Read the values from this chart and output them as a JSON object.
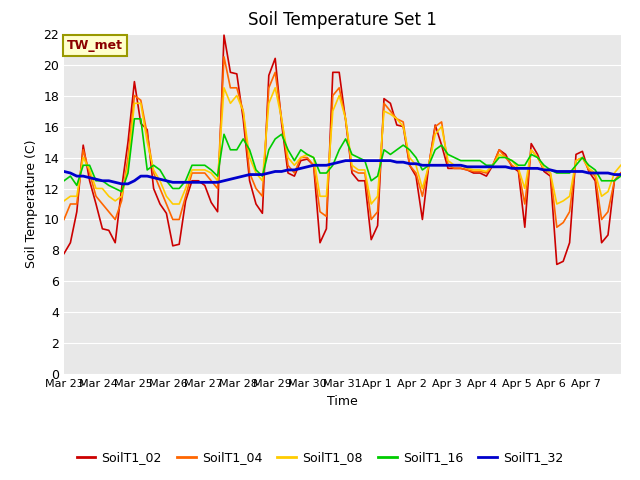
{
  "title": "Soil Temperature Set 1",
  "xlabel": "Time",
  "ylabel": "Soil Temperature (C)",
  "ylim": [
    0,
    22
  ],
  "yticks": [
    0,
    2,
    4,
    6,
    8,
    10,
    12,
    14,
    16,
    18,
    20,
    22
  ],
  "annotation": "TW_met",
  "series_labels": [
    "SoilT1_02",
    "SoilT1_04",
    "SoilT1_08",
    "SoilT1_16",
    "SoilT1_32"
  ],
  "series_colors": [
    "#cc0000",
    "#ff6600",
    "#ffcc00",
    "#00cc00",
    "#0000cc"
  ],
  "series_linewidths": [
    1.2,
    1.2,
    1.2,
    1.2,
    2.0
  ],
  "background_color": "#e8e8e8",
  "fig_background": "#ffffff",
  "title_fontsize": 12,
  "axis_fontsize": 9,
  "legend_fontsize": 9,
  "x_dates": [
    "Mar 23",
    "Mar 24",
    "Mar 25",
    "Mar 26",
    "Mar 27",
    "Mar 28",
    "Mar 29",
    "Mar 30",
    "Mar 31",
    "Apr 1",
    "Apr 2",
    "Apr 3",
    "Apr 4",
    "Apr 5",
    "Apr 6",
    "Apr 7"
  ],
  "SoilT1_02": [
    7.8,
    8.5,
    10.5,
    14.8,
    12.5,
    11.0,
    9.4,
    9.3,
    8.5,
    12.0,
    15.0,
    18.9,
    16.2,
    15.8,
    12.0,
    11.0,
    10.4,
    8.3,
    8.4,
    11.2,
    12.5,
    12.5,
    12.2,
    11.1,
    10.5,
    21.9,
    19.5,
    19.4,
    16.5,
    12.5,
    11.0,
    10.4,
    19.3,
    20.4,
    16.2,
    13.0,
    12.8,
    13.8,
    13.9,
    13.5,
    8.5,
    9.4,
    19.5,
    19.5,
    16.4,
    13.0,
    12.5,
    12.5,
    8.7,
    9.6,
    17.8,
    17.5,
    16.1,
    16.0,
    13.5,
    12.8,
    10.0,
    13.5,
    16.1,
    14.8,
    13.3,
    13.3,
    13.3,
    13.2,
    13.0,
    13.0,
    12.8,
    13.5,
    14.5,
    14.2,
    13.4,
    13.1,
    9.5,
    14.9,
    14.2,
    13.1,
    12.8,
    7.1,
    7.3,
    8.5,
    14.2,
    14.4,
    13.1,
    12.5,
    8.5,
    9.0,
    12.5,
    13.0
  ],
  "SoilT1_04": [
    10.0,
    11.0,
    11.0,
    14.5,
    13.0,
    11.5,
    11.0,
    10.5,
    10.0,
    11.2,
    14.0,
    18.0,
    17.7,
    15.5,
    13.0,
    12.0,
    11.0,
    10.0,
    10.0,
    11.5,
    13.0,
    13.0,
    13.0,
    12.5,
    12.0,
    20.5,
    18.5,
    18.5,
    17.0,
    13.0,
    12.0,
    11.5,
    18.5,
    19.5,
    16.5,
    13.5,
    13.0,
    14.0,
    14.0,
    13.5,
    10.5,
    10.2,
    18.0,
    18.5,
    16.5,
    13.2,
    13.0,
    13.0,
    10.0,
    10.5,
    17.5,
    17.0,
    16.5,
    16.3,
    13.5,
    13.0,
    11.5,
    13.5,
    16.0,
    16.3,
    13.5,
    13.3,
    13.3,
    13.2,
    13.1,
    13.1,
    13.0,
    13.5,
    14.5,
    14.0,
    13.5,
    13.2,
    11.0,
    14.5,
    14.0,
    13.2,
    13.0,
    9.5,
    9.8,
    10.5,
    13.8,
    14.0,
    13.2,
    12.8,
    10.0,
    10.5,
    12.5,
    13.0
  ],
  "SoilT1_08": [
    11.2,
    11.5,
    11.5,
    14.0,
    13.2,
    12.0,
    12.0,
    11.5,
    11.2,
    11.5,
    13.5,
    17.5,
    17.5,
    15.0,
    13.2,
    12.5,
    11.5,
    11.0,
    11.0,
    12.0,
    13.2,
    13.2,
    13.2,
    13.0,
    12.5,
    18.5,
    17.5,
    18.0,
    17.0,
    14.0,
    13.0,
    12.5,
    17.5,
    18.5,
    16.5,
    14.0,
    13.5,
    14.0,
    14.2,
    14.0,
    11.5,
    11.5,
    17.0,
    18.0,
    16.5,
    13.5,
    13.2,
    13.2,
    11.0,
    11.5,
    17.0,
    16.8,
    16.5,
    16.0,
    14.0,
    13.5,
    12.0,
    13.5,
    15.5,
    16.0,
    13.8,
    13.5,
    13.5,
    13.3,
    13.2,
    13.2,
    13.1,
    13.5,
    14.2,
    14.0,
    13.8,
    13.3,
    12.0,
    14.5,
    14.0,
    13.3,
    13.0,
    11.0,
    11.2,
    11.5,
    13.8,
    14.0,
    13.3,
    13.0,
    11.5,
    11.8,
    13.0,
    13.5
  ],
  "SoilT1_16": [
    12.5,
    12.8,
    12.2,
    13.5,
    13.5,
    12.5,
    12.5,
    12.2,
    12.0,
    11.8,
    13.0,
    16.5,
    16.5,
    13.2,
    13.5,
    13.2,
    12.5,
    12.0,
    12.0,
    12.5,
    13.5,
    13.5,
    13.5,
    13.2,
    12.8,
    15.5,
    14.5,
    14.5,
    15.2,
    14.5,
    13.2,
    12.8,
    14.5,
    15.2,
    15.5,
    14.5,
    13.8,
    14.5,
    14.2,
    14.0,
    13.0,
    13.0,
    13.5,
    14.5,
    15.2,
    14.2,
    14.0,
    13.8,
    12.5,
    12.8,
    14.5,
    14.2,
    14.5,
    14.8,
    14.5,
    14.0,
    13.2,
    13.5,
    14.5,
    14.8,
    14.2,
    14.0,
    13.8,
    13.8,
    13.8,
    13.8,
    13.5,
    13.5,
    14.0,
    14.0,
    13.8,
    13.5,
    13.5,
    14.2,
    14.0,
    13.5,
    13.2,
    13.0,
    13.0,
    13.0,
    13.5,
    14.0,
    13.5,
    13.2,
    12.5,
    12.5,
    12.5,
    12.8
  ],
  "SoilT1_32": [
    13.1,
    13.0,
    12.8,
    12.8,
    12.7,
    12.6,
    12.5,
    12.5,
    12.4,
    12.3,
    12.3,
    12.5,
    12.8,
    12.8,
    12.7,
    12.6,
    12.5,
    12.4,
    12.4,
    12.4,
    12.4,
    12.4,
    12.4,
    12.4,
    12.4,
    12.5,
    12.6,
    12.7,
    12.8,
    12.9,
    12.9,
    12.9,
    13.0,
    13.1,
    13.1,
    13.2,
    13.2,
    13.3,
    13.4,
    13.5,
    13.5,
    13.5,
    13.6,
    13.7,
    13.8,
    13.8,
    13.8,
    13.8,
    13.8,
    13.8,
    13.8,
    13.8,
    13.7,
    13.7,
    13.6,
    13.6,
    13.5,
    13.5,
    13.5,
    13.5,
    13.5,
    13.5,
    13.5,
    13.4,
    13.4,
    13.4,
    13.4,
    13.4,
    13.4,
    13.4,
    13.3,
    13.3,
    13.3,
    13.3,
    13.3,
    13.2,
    13.2,
    13.1,
    13.1,
    13.1,
    13.1,
    13.1,
    13.0,
    13.0,
    13.0,
    13.0,
    12.9,
    12.9
  ]
}
